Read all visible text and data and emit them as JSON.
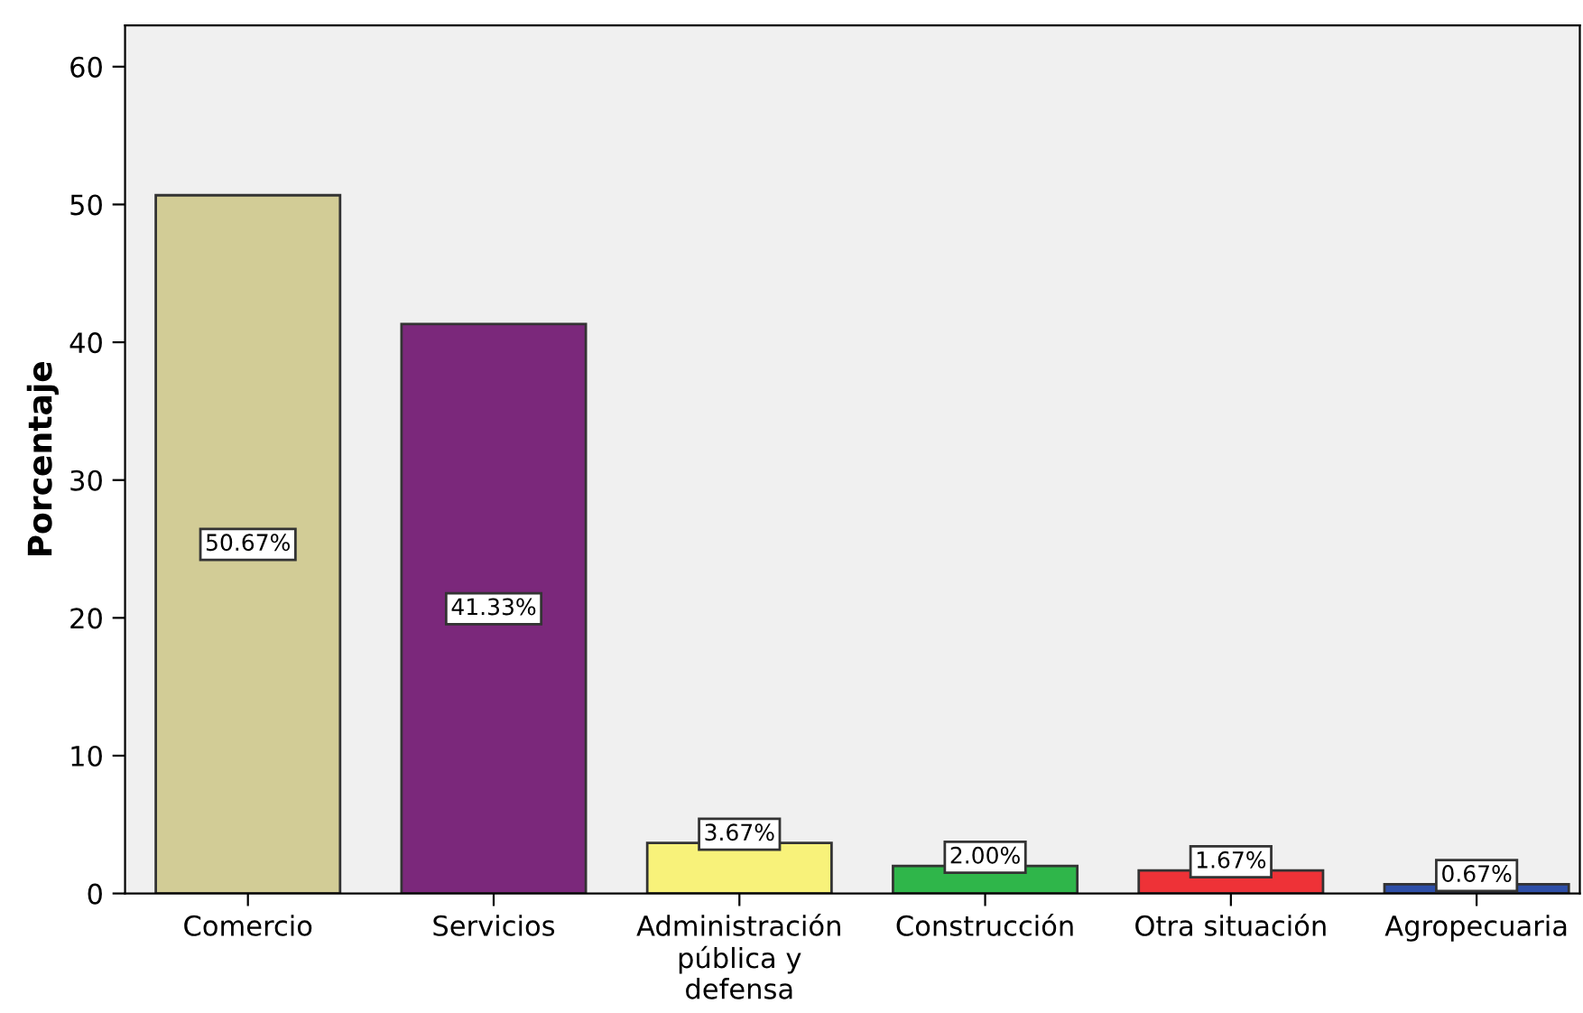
{
  "chart_data": {
    "type": "bar",
    "ylabel": "Porcentaje",
    "categories": [
      "Comercio",
      "Servicios",
      "Administración\npública y\ndefensa",
      "Construcción",
      "Otra situación",
      "Agropecuaria"
    ],
    "values": [
      50.67,
      41.33,
      3.67,
      2.0,
      1.67,
      0.67
    ],
    "colors": [
      "#d2cc96",
      "#7b287b",
      "#f8f27a",
      "#2fb64a",
      "#ee3237",
      "#2e4fa8"
    ],
    "value_labels": [
      "50.67%",
      "41.33%",
      "3.67%",
      "2.00%",
      "1.67%",
      "0.67%"
    ],
    "ylim": [
      0,
      63
    ],
    "yticks": [
      0,
      10,
      20,
      30,
      40,
      50,
      60
    ],
    "grid": false,
    "legend": false
  }
}
